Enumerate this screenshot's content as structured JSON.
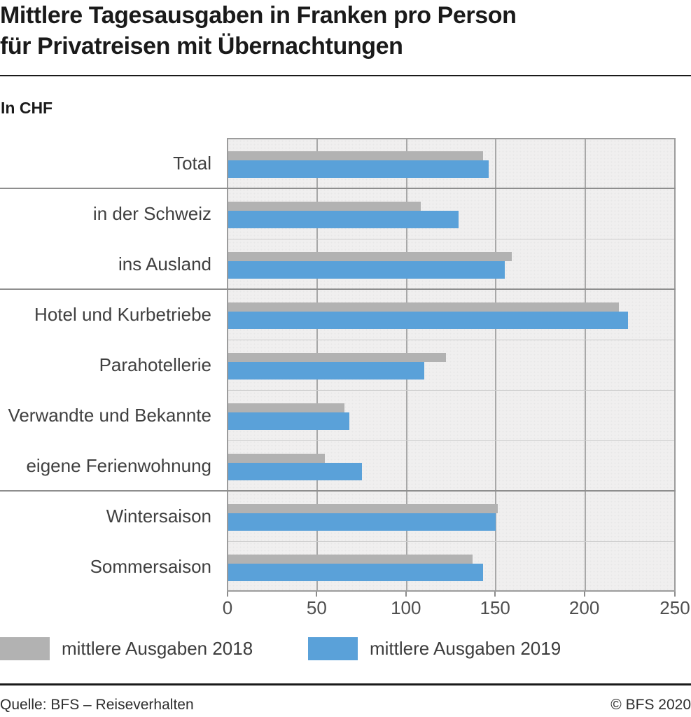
{
  "header": {
    "title_line1": "Mittlere Tagesausgaben in Franken pro Person",
    "title_line2": "für Privatreisen mit Übernachtungen",
    "unit_label": "In CHF"
  },
  "chart_data": {
    "type": "bar",
    "orientation": "horizontal",
    "unit": "CHF",
    "title": "Mittlere Tagesausgaben in Franken pro Person für Privatreisen mit Übernachtungen",
    "categories": [
      "Total",
      "in der Schweiz",
      "ins Ausland",
      "Hotel und Kurbetriebe",
      "Parahotellerie",
      "Verwandte und Bekannte",
      "eigene Ferienwohnung",
      "Wintersaison",
      "Sommersaison"
    ],
    "series": [
      {
        "name": "mittlere Ausgaben 2018",
        "color": "#b2b2b2",
        "values": [
          143,
          108,
          159,
          219,
          122,
          65,
          54,
          151,
          137
        ]
      },
      {
        "name": "mittlere Ausgaben 2019",
        "color": "#5aa1d9",
        "values": [
          146,
          129,
          155,
          224,
          110,
          68,
          75,
          150,
          143
        ]
      }
    ],
    "x_axis": {
      "min": 0,
      "max": 250,
      "ticks": [
        0,
        50,
        100,
        150,
        200,
        250
      ]
    },
    "grid": true,
    "group_separators_after": [
      "Total",
      "ins Ausland",
      "eigene Ferienwohnung"
    ],
    "legend_position": "bottom",
    "plot_background": "#f0efef",
    "gridline_color": "#a8a8a8"
  },
  "footer": {
    "source": "Quelle: BFS – Reiseverhalten",
    "copyright": "© BFS 2020"
  }
}
